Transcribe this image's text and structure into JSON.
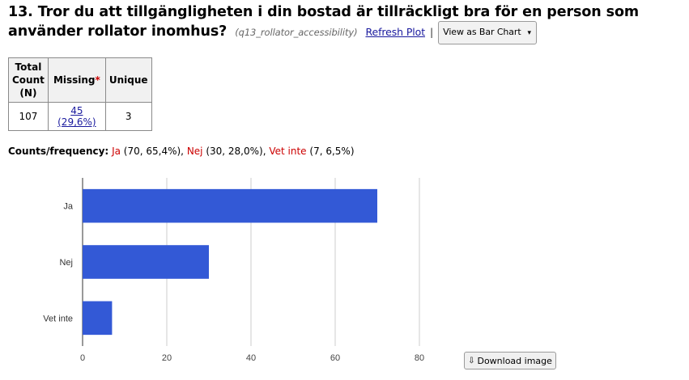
{
  "header": {
    "title": "13. Tror du att tillgängligheten i din bostad är tillräckligt bra för en person som använder rollator inomhus?",
    "variable": "(q13_rollator_accessibility)",
    "refresh_label": "Refresh Plot",
    "separator": "|",
    "view_select": "View as Bar Chart",
    "view_select_icon": "chevron-down-icon"
  },
  "stats": {
    "headers": {
      "total": "Total Count (N)",
      "missing": "Missing",
      "missing_marker": "*",
      "unique": "Unique"
    },
    "total": "107",
    "missing": "45 (29,6%)",
    "unique": "3"
  },
  "counts": {
    "label": "Counts/frequency:",
    "items": [
      {
        "category": "Ja",
        "detail": " (70, 65,4%),"
      },
      {
        "category": "Nej",
        "detail": " (30, 28,0%),"
      },
      {
        "category": "Vet inte",
        "detail": " (7, 6,5%)"
      }
    ]
  },
  "download": {
    "label": "Download image",
    "icon": "download-icon"
  },
  "colors": {
    "bar": "#3359d6",
    "category_text": "#cc0000",
    "link": "#1a1a9e"
  },
  "chart_data": {
    "type": "bar",
    "orientation": "horizontal",
    "categories": [
      "Ja",
      "Nej",
      "Vet inte"
    ],
    "values": [
      70,
      30,
      7
    ],
    "xlim": [
      0,
      80
    ],
    "xticks": [
      0,
      20,
      40,
      60,
      80
    ],
    "grid": true,
    "title": "",
    "xlabel": "",
    "ylabel": ""
  }
}
